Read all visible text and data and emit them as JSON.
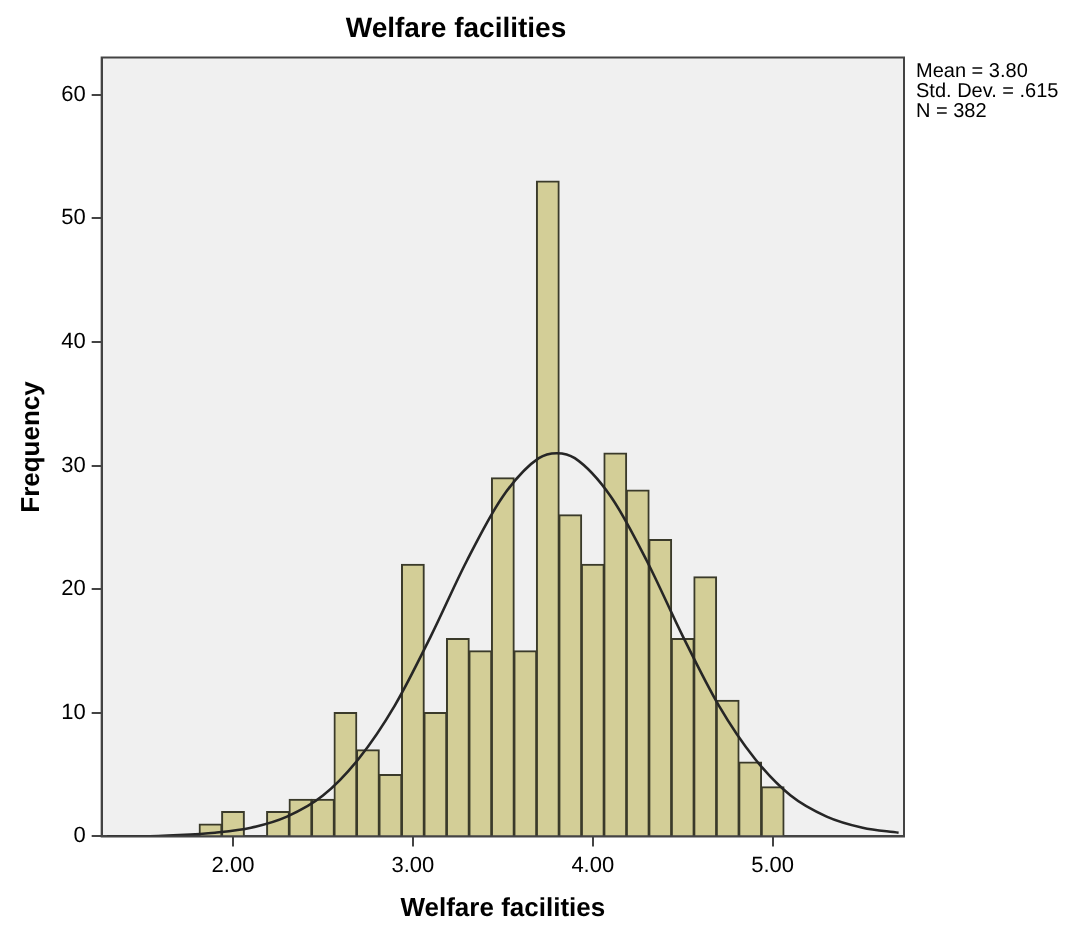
{
  "chart_data": {
    "type": "histogram",
    "title": "Welfare facilities",
    "xlabel": "Welfare facilities",
    "ylabel": "Frequency",
    "series": [
      {
        "color": "#d3ce97",
        "bins": [
          1.8125,
          1.9375,
          2.0625,
          2.1875,
          2.3125,
          2.4375,
          2.5625,
          2.6875,
          2.8125,
          2.9375,
          3.0625,
          3.1875,
          3.3125,
          3.4375,
          3.5625,
          3.6875,
          3.8125,
          3.9375,
          4.0625,
          4.1875,
          4.3125,
          4.4375,
          4.5625,
          4.6875,
          4.8125,
          4.9375,
          5.0625
        ],
        "values": [
          1,
          2,
          0,
          2,
          3,
          3,
          10,
          7,
          5,
          22,
          10,
          16,
          15,
          29,
          15,
          53,
          26,
          22,
          31,
          28,
          24,
          16,
          21,
          11,
          6,
          4
        ]
      },
      {
        "type": "line",
        "color": "#262626",
        "x": [
          1.3,
          1.5,
          1.7,
          1.9,
          2.1,
          2.3,
          2.5,
          2.7,
          2.9,
          3.1,
          3.3,
          3.5,
          3.7,
          3.8,
          3.9,
          4.1,
          4.3,
          4.5,
          4.7,
          4.9,
          5.1,
          5.3,
          5.5,
          5.7
        ],
        "values": [
          0,
          0,
          0.1,
          0.3,
          0.7,
          1.6,
          3.3,
          6.3,
          10.6,
          16.2,
          22.3,
          27.5,
          30.6,
          31,
          30.6,
          27.5,
          22.3,
          16.2,
          10.6,
          6.3,
          3.3,
          1.6,
          0.7,
          0.3
        ]
      }
    ],
    "xlim": [
      1.27,
      5.73
    ],
    "xticks": [
      {
        "value": 2,
        "label": "2.00"
      },
      {
        "value": 3,
        "label": "3.00"
      },
      {
        "value": 4,
        "label": "4.00"
      },
      {
        "value": 5,
        "label": "5.00"
      }
    ],
    "ylim": [
      0,
      63
    ],
    "yticks": [
      0,
      10,
      20,
      30,
      40,
      50,
      60
    ],
    "annotations": [
      "Mean = 3.80",
      "Std. Dev. = .615",
      "N = 382"
    ],
    "grid": false,
    "legend": false,
    "marker": "none"
  }
}
